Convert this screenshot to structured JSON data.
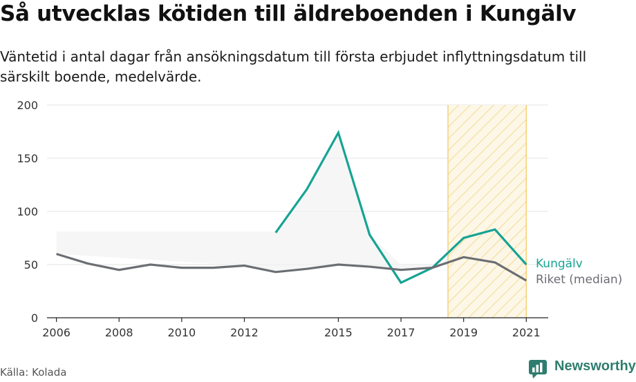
{
  "title": "Så utvecklas kötiden till äldreboenden i Kungälv",
  "subtitle": "Väntetid i antal dagar från ansökningsdatum till första erbjudet inflyttningsdatum till särskilt boende, medelvärde.",
  "source": "Källa: Kolada",
  "brand": "Newsworthy",
  "colors": {
    "kungalv": "#16a394",
    "riket": "#6b6e73",
    "highlight": "#f2c75c",
    "brand": "#2e7d6e"
  },
  "chart_data": {
    "type": "line",
    "title": "Så utvecklas kötiden till äldreboenden i Kungälv",
    "xlabel": "",
    "ylabel": "",
    "xlim": [
      2005.7,
      2021.7
    ],
    "ylim": [
      0,
      200
    ],
    "yticks": [
      0,
      50,
      100,
      150,
      200
    ],
    "xticks": [
      2006,
      2008,
      2010,
      2012,
      2015,
      2017,
      2019,
      2021
    ],
    "grid": true,
    "highlight_range": [
      2018.5,
      2021
    ],
    "series": [
      {
        "name": "Kungälv",
        "x": [
          2013,
          2014,
          2015,
          2016,
          2017,
          2018,
          2019,
          2020,
          2021
        ],
        "values": [
          80,
          121,
          174,
          78,
          33,
          47,
          75,
          83,
          50
        ]
      },
      {
        "name": "Riket (median)",
        "x": [
          2006,
          2007,
          2008,
          2009,
          2010,
          2011,
          2012,
          2013,
          2014,
          2015,
          2016,
          2017,
          2018,
          2019,
          2020,
          2021
        ],
        "values": [
          60,
          51,
          45,
          50,
          47,
          47,
          49,
          43,
          46,
          50,
          48,
          45,
          47,
          57,
          52,
          35
        ]
      }
    ],
    "band": {
      "x": [
        2006,
        2012,
        2013,
        2014,
        2015,
        2016,
        2017,
        2018,
        2019,
        2020,
        2021
      ],
      "upper": [
        81,
        81,
        81,
        121,
        174,
        78,
        50,
        50,
        75,
        83,
        50
      ],
      "lower": [
        60,
        49,
        43,
        46,
        50,
        48,
        45,
        47,
        57,
        52,
        35
      ]
    }
  }
}
